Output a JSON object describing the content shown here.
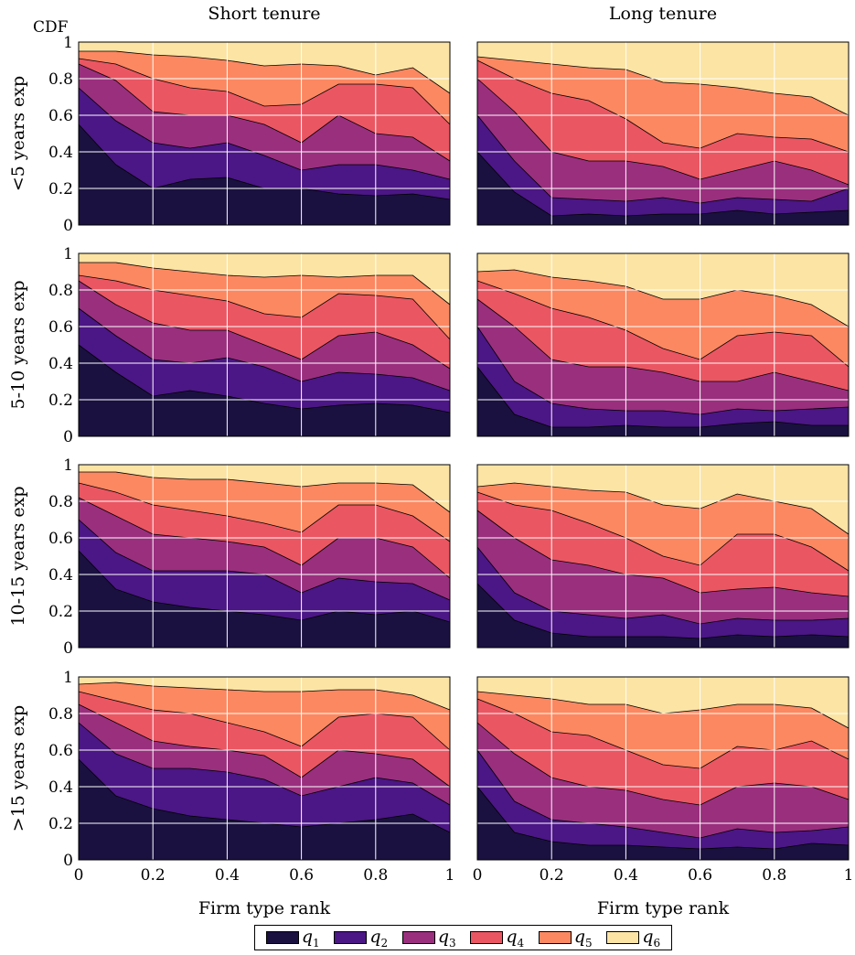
{
  "chart_data": {
    "type": "area",
    "stacked": true,
    "column_titles": [
      "Short tenure",
      "Long tenure"
    ],
    "row_labels": [
      "<5 years exp",
      "5-10 years exp",
      "10-15 years exp",
      ">15 years exp"
    ],
    "ylabel": "CDF",
    "xlabel": "Firm type rank",
    "xlim": [
      0,
      1
    ],
    "ylim": [
      0,
      1
    ],
    "x_ticks": [
      "0",
      "0.2",
      "0.4",
      "0.6",
      "0.8",
      "1"
    ],
    "y_ticks": [
      "0",
      "0.2",
      "0.4",
      "0.6",
      "0.8",
      "1"
    ],
    "grid": true,
    "legend_position": "bottom",
    "series_names": [
      "q1",
      "q2",
      "q3",
      "q4",
      "q5",
      "q6"
    ],
    "colors": [
      "#1a1140",
      "#4b1685",
      "#9a2f7e",
      "#ea5662",
      "#fb8861",
      "#fbe4a4"
    ],
    "x": [
      0,
      0.1,
      0.2,
      0.3,
      0.4,
      0.5,
      0.6,
      0.7,
      0.8,
      0.9,
      1.0
    ],
    "panels": [
      {
        "row": 0,
        "col": 0,
        "cdf": [
          [
            0.55,
            0.33,
            0.2,
            0.25,
            0.26,
            0.2,
            0.2,
            0.17,
            0.16,
            0.17,
            0.14
          ],
          [
            0.75,
            0.57,
            0.45,
            0.42,
            0.45,
            0.38,
            0.3,
            0.33,
            0.33,
            0.3,
            0.25
          ],
          [
            0.88,
            0.79,
            0.62,
            0.6,
            0.6,
            0.55,
            0.45,
            0.6,
            0.5,
            0.48,
            0.35
          ],
          [
            0.91,
            0.88,
            0.8,
            0.75,
            0.73,
            0.65,
            0.66,
            0.77,
            0.77,
            0.75,
            0.55
          ],
          [
            0.95,
            0.95,
            0.93,
            0.92,
            0.9,
            0.87,
            0.88,
            0.87,
            0.82,
            0.86,
            0.72
          ],
          [
            1,
            1,
            1,
            1,
            1,
            1,
            1,
            1,
            1,
            1,
            1
          ]
        ]
      },
      {
        "row": 0,
        "col": 1,
        "cdf": [
          [
            0.4,
            0.18,
            0.05,
            0.06,
            0.05,
            0.06,
            0.06,
            0.08,
            0.06,
            0.07,
            0.08
          ],
          [
            0.6,
            0.35,
            0.15,
            0.14,
            0.13,
            0.15,
            0.12,
            0.15,
            0.14,
            0.13,
            0.2
          ],
          [
            0.8,
            0.62,
            0.4,
            0.35,
            0.35,
            0.32,
            0.25,
            0.3,
            0.35,
            0.3,
            0.22
          ],
          [
            0.9,
            0.8,
            0.72,
            0.68,
            0.58,
            0.45,
            0.42,
            0.5,
            0.48,
            0.47,
            0.4
          ],
          [
            0.92,
            0.9,
            0.88,
            0.86,
            0.85,
            0.78,
            0.77,
            0.75,
            0.72,
            0.7,
            0.6
          ],
          [
            1,
            1,
            1,
            1,
            1,
            1,
            1,
            1,
            1,
            1,
            1
          ]
        ]
      },
      {
        "row": 1,
        "col": 0,
        "cdf": [
          [
            0.5,
            0.35,
            0.22,
            0.25,
            0.22,
            0.18,
            0.15,
            0.17,
            0.18,
            0.17,
            0.13
          ],
          [
            0.7,
            0.55,
            0.42,
            0.4,
            0.43,
            0.38,
            0.3,
            0.35,
            0.34,
            0.32,
            0.25
          ],
          [
            0.85,
            0.72,
            0.62,
            0.58,
            0.58,
            0.5,
            0.42,
            0.55,
            0.57,
            0.5,
            0.37
          ],
          [
            0.88,
            0.85,
            0.8,
            0.77,
            0.74,
            0.67,
            0.65,
            0.78,
            0.77,
            0.75,
            0.53
          ],
          [
            0.95,
            0.95,
            0.92,
            0.9,
            0.88,
            0.87,
            0.88,
            0.87,
            0.88,
            0.88,
            0.72
          ],
          [
            1,
            1,
            1,
            1,
            1,
            1,
            1,
            1,
            1,
            1,
            1
          ]
        ]
      },
      {
        "row": 1,
        "col": 1,
        "cdf": [
          [
            0.38,
            0.12,
            0.05,
            0.05,
            0.06,
            0.05,
            0.05,
            0.07,
            0.08,
            0.06,
            0.06
          ],
          [
            0.6,
            0.3,
            0.18,
            0.15,
            0.14,
            0.14,
            0.12,
            0.15,
            0.14,
            0.15,
            0.16
          ],
          [
            0.75,
            0.6,
            0.42,
            0.38,
            0.38,
            0.35,
            0.3,
            0.3,
            0.35,
            0.3,
            0.25
          ],
          [
            0.85,
            0.78,
            0.7,
            0.65,
            0.58,
            0.48,
            0.42,
            0.55,
            0.57,
            0.55,
            0.38
          ],
          [
            0.9,
            0.91,
            0.87,
            0.85,
            0.82,
            0.75,
            0.75,
            0.8,
            0.77,
            0.72,
            0.6
          ],
          [
            1,
            1,
            1,
            1,
            1,
            1,
            1,
            1,
            1,
            1,
            1
          ]
        ]
      },
      {
        "row": 2,
        "col": 0,
        "cdf": [
          [
            0.53,
            0.32,
            0.25,
            0.22,
            0.2,
            0.18,
            0.15,
            0.2,
            0.18,
            0.2,
            0.14
          ],
          [
            0.7,
            0.52,
            0.42,
            0.42,
            0.42,
            0.4,
            0.3,
            0.38,
            0.36,
            0.35,
            0.26
          ],
          [
            0.82,
            0.72,
            0.62,
            0.6,
            0.58,
            0.55,
            0.45,
            0.6,
            0.6,
            0.55,
            0.38
          ],
          [
            0.9,
            0.85,
            0.78,
            0.75,
            0.72,
            0.68,
            0.63,
            0.78,
            0.78,
            0.72,
            0.58
          ],
          [
            0.96,
            0.96,
            0.93,
            0.92,
            0.92,
            0.9,
            0.88,
            0.9,
            0.9,
            0.89,
            0.74
          ],
          [
            1,
            1,
            1,
            1,
            1,
            1,
            1,
            1,
            1,
            1,
            1
          ]
        ]
      },
      {
        "row": 2,
        "col": 1,
        "cdf": [
          [
            0.35,
            0.15,
            0.08,
            0.06,
            0.06,
            0.06,
            0.05,
            0.07,
            0.06,
            0.07,
            0.06
          ],
          [
            0.55,
            0.3,
            0.2,
            0.18,
            0.16,
            0.18,
            0.13,
            0.16,
            0.15,
            0.15,
            0.16
          ],
          [
            0.75,
            0.6,
            0.48,
            0.45,
            0.4,
            0.38,
            0.3,
            0.32,
            0.33,
            0.3,
            0.28
          ],
          [
            0.85,
            0.78,
            0.75,
            0.68,
            0.6,
            0.5,
            0.45,
            0.62,
            0.62,
            0.55,
            0.42
          ],
          [
            0.88,
            0.9,
            0.88,
            0.86,
            0.85,
            0.78,
            0.76,
            0.84,
            0.8,
            0.76,
            0.62
          ],
          [
            1,
            1,
            1,
            1,
            1,
            1,
            1,
            1,
            1,
            1,
            1
          ]
        ]
      },
      {
        "row": 3,
        "col": 0,
        "cdf": [
          [
            0.55,
            0.35,
            0.28,
            0.24,
            0.22,
            0.2,
            0.18,
            0.2,
            0.22,
            0.25,
            0.15
          ],
          [
            0.75,
            0.58,
            0.5,
            0.5,
            0.48,
            0.44,
            0.35,
            0.4,
            0.45,
            0.42,
            0.3
          ],
          [
            0.85,
            0.75,
            0.65,
            0.62,
            0.6,
            0.57,
            0.45,
            0.6,
            0.58,
            0.55,
            0.4
          ],
          [
            0.92,
            0.87,
            0.82,
            0.8,
            0.75,
            0.7,
            0.62,
            0.78,
            0.8,
            0.78,
            0.6
          ],
          [
            0.96,
            0.97,
            0.95,
            0.94,
            0.93,
            0.92,
            0.92,
            0.93,
            0.93,
            0.9,
            0.82
          ],
          [
            1,
            1,
            1,
            1,
            1,
            1,
            1,
            1,
            1,
            1,
            1
          ]
        ]
      },
      {
        "row": 3,
        "col": 1,
        "cdf": [
          [
            0.4,
            0.15,
            0.1,
            0.08,
            0.08,
            0.07,
            0.06,
            0.07,
            0.06,
            0.09,
            0.08
          ],
          [
            0.6,
            0.32,
            0.22,
            0.2,
            0.18,
            0.15,
            0.12,
            0.17,
            0.15,
            0.16,
            0.18
          ],
          [
            0.75,
            0.58,
            0.45,
            0.4,
            0.38,
            0.33,
            0.3,
            0.4,
            0.42,
            0.4,
            0.33
          ],
          [
            0.88,
            0.8,
            0.7,
            0.68,
            0.6,
            0.52,
            0.5,
            0.62,
            0.6,
            0.65,
            0.55
          ],
          [
            0.92,
            0.9,
            0.88,
            0.85,
            0.85,
            0.8,
            0.82,
            0.85,
            0.85,
            0.83,
            0.72
          ],
          [
            1,
            1,
            1,
            1,
            1,
            1,
            1,
            1,
            1,
            1,
            1
          ]
        ]
      }
    ]
  }
}
